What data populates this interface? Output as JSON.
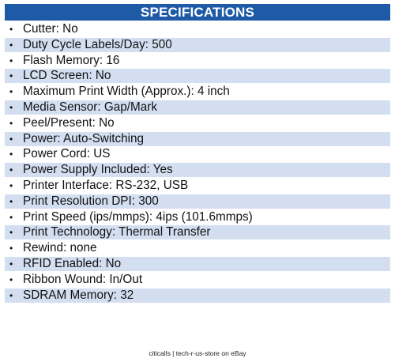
{
  "header": {
    "title": "SPECIFICATIONS"
  },
  "specs": [
    "Cutter: No",
    "Duty Cycle Labels/Day: 500",
    "Flash Memory: 16",
    "LCD Screen: No",
    "Maximum Print Width (Approx.): 4 inch",
    "Media Sensor: Gap/Mark",
    "Peel/Present: No",
    "Power: Auto-Switching",
    "Power Cord: US",
    "Power Supply Included: Yes",
    "Printer Interface: RS-232, USB",
    "Print Resolution DPI: 300",
    "Print Speed (ips/mmps): 4ips (101.6mmps)",
    "Print Technology: Thermal Transfer",
    "Rewind: none",
    "RFID Enabled: No",
    "Ribbon Wound: In/Out",
    "SDRAM Memory: 32"
  ],
  "bullet": "•",
  "footer": {
    "text": "citicalls | tech-r-us-store on eBay"
  },
  "colors": {
    "header_background": "#1f5aa6",
    "header_text": "#ffffff",
    "alternate_row": "#d3dff1"
  }
}
